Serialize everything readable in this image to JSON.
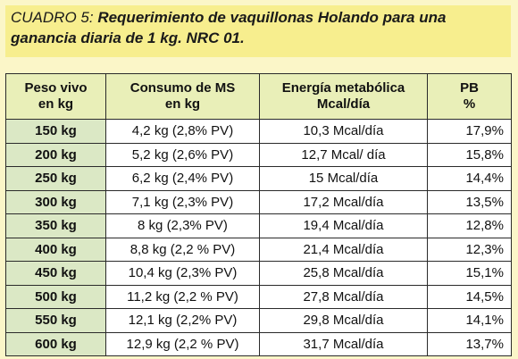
{
  "title": {
    "label": "CUADRO 5:",
    "text": "Requerimiento de vaquillonas Holando para una ganancia diaria de 1 kg. NRC 01."
  },
  "table": {
    "headers": [
      "Peso vivo\nen kg",
      "Consumo de MS\nen kg",
      "Energía metabólica\nMcal/día",
      "PB\n%"
    ],
    "rows": [
      [
        "150 kg",
        "4,2 kg (2,8% PV)",
        "10,3 Mcal/día",
        "17,9%"
      ],
      [
        "200 kg",
        "5,2 kg (2,6% PV)",
        "12,7 Mcal/ día",
        "15,8%"
      ],
      [
        "250 kg",
        "6,2 kg (2,4% PV)",
        "15 Mcal/día",
        "14,4%"
      ],
      [
        "300 kg",
        "7,1 kg (2,3% PV)",
        "17,2 Mcal/día",
        "13,5%"
      ],
      [
        "350 kg",
        "8 kg (2,3% PV)",
        "19,4 Mcal/día",
        "12,8%"
      ],
      [
        "400 kg",
        "8,8 kg (2,2 % PV)",
        "21,4 Mcal/día",
        "12,3%"
      ],
      [
        "450 kg",
        "10,4 kg (2,3% PV)",
        "25,8 Mcal/día",
        "15,1%"
      ],
      [
        "500 kg",
        "11,2 kg (2,2 % PV)",
        "27,8 Mcal/día",
        "14,5%"
      ],
      [
        "550 kg",
        "12,1 kg (2,2% PV)",
        "29,8 Mcal/día",
        "14,1%"
      ],
      [
        "600 kg",
        "12,9 kg (2,2 % PV)",
        "31,7 Mcal/día",
        "13,7%"
      ]
    ]
  }
}
